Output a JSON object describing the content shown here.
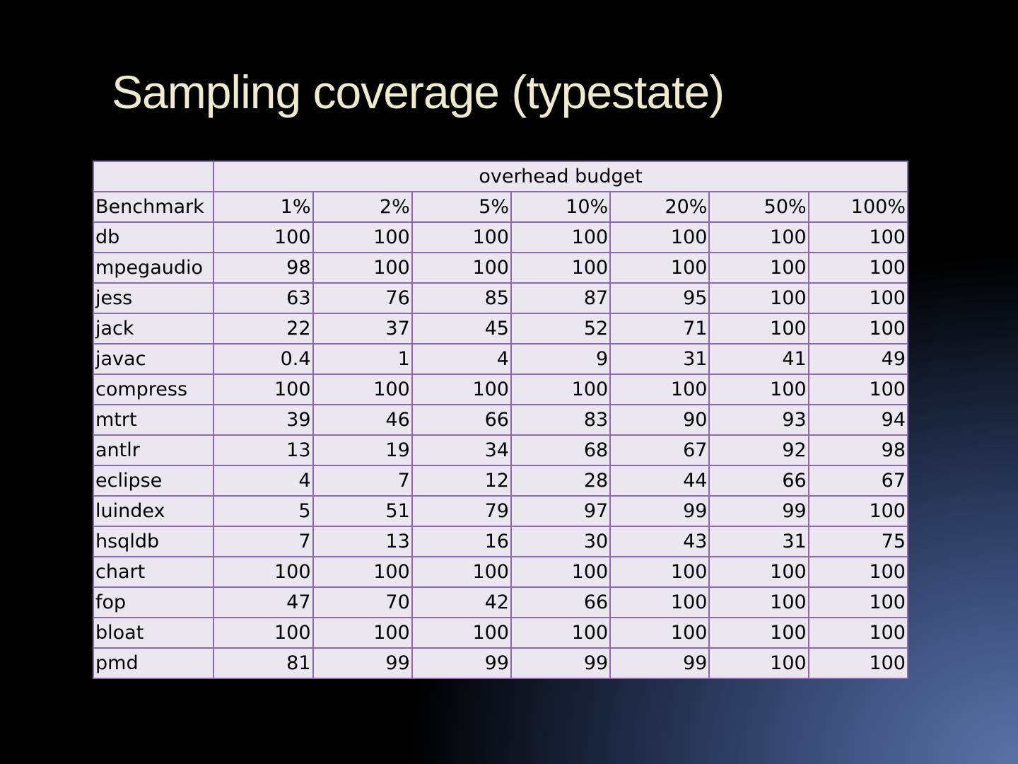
{
  "slide": {
    "title": "Sampling coverage (typestate)"
  },
  "table": {
    "group_header": "overhead budget",
    "corner_cell": "",
    "row_header_label": "Benchmark",
    "columns": [
      "1%",
      "2%",
      "5%",
      "10%",
      "20%",
      "50%",
      "100%"
    ],
    "rows": [
      {
        "name": "db",
        "values": [
          "100",
          "100",
          "100",
          "100",
          "100",
          "100",
          "100"
        ]
      },
      {
        "name": "mpegaudio",
        "values": [
          "98",
          "100",
          "100",
          "100",
          "100",
          "100",
          "100"
        ]
      },
      {
        "name": "jess",
        "values": [
          "63",
          "76",
          "85",
          "87",
          "95",
          "100",
          "100"
        ]
      },
      {
        "name": "jack",
        "values": [
          "22",
          "37",
          "45",
          "52",
          "71",
          "100",
          "100"
        ]
      },
      {
        "name": "javac",
        "values": [
          "0.4",
          "1",
          "4",
          "9",
          "31",
          "41",
          "49"
        ]
      },
      {
        "name": "compress",
        "values": [
          "100",
          "100",
          "100",
          "100",
          "100",
          "100",
          "100"
        ]
      },
      {
        "name": "mtrt",
        "values": [
          "39",
          "46",
          "66",
          "83",
          "90",
          "93",
          "94"
        ]
      },
      {
        "name": "antlr",
        "values": [
          "13",
          "19",
          "34",
          "68",
          "67",
          "92",
          "98"
        ]
      },
      {
        "name": "eclipse",
        "values": [
          "4",
          "7",
          "12",
          "28",
          "44",
          "66",
          "67"
        ]
      },
      {
        "name": "luindex",
        "values": [
          "5",
          "51",
          "79",
          "97",
          "99",
          "99",
          "100"
        ]
      },
      {
        "name": "hsqldb",
        "values": [
          "7",
          "13",
          "16",
          "30",
          "43",
          "31",
          "75"
        ]
      },
      {
        "name": "chart",
        "values": [
          "100",
          "100",
          "100",
          "100",
          "100",
          "100",
          "100"
        ]
      },
      {
        "name": "fop",
        "values": [
          "47",
          "70",
          "42",
          "66",
          "100",
          "100",
          "100"
        ]
      },
      {
        "name": "bloat",
        "values": [
          "100",
          "100",
          "100",
          "100",
          "100",
          "100",
          "100"
        ]
      },
      {
        "name": "pmd",
        "values": [
          "81",
          "99",
          "99",
          "99",
          "99",
          "100",
          "100"
        ]
      }
    ]
  },
  "colors": {
    "title_text": "#f0ebcf",
    "table_background": "#ebe6f0",
    "table_border": "#8a6cae",
    "slide_background": "#000000",
    "gradient_accent": "#5a73a6"
  }
}
